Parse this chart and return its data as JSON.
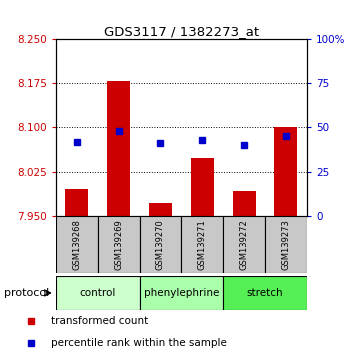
{
  "title": "GDS3117 / 1382273_at",
  "samples": [
    "GSM139268",
    "GSM139269",
    "GSM139270",
    "GSM139271",
    "GSM139272",
    "GSM139273"
  ],
  "red_values": [
    7.995,
    8.178,
    7.972,
    8.048,
    7.993,
    8.1
  ],
  "blue_values": [
    42,
    48,
    41,
    43,
    40,
    45
  ],
  "y_min": 7.95,
  "y_max": 8.25,
  "y_ticks": [
    7.95,
    8.025,
    8.1,
    8.175,
    8.25
  ],
  "right_y_ticks": [
    0,
    25,
    50,
    75,
    100
  ],
  "protocols": [
    {
      "label": "control",
      "samples": [
        0,
        1
      ],
      "color": "#ccffcc"
    },
    {
      "label": "phenylephrine",
      "samples": [
        2,
        3
      ],
      "color": "#aaffaa"
    },
    {
      "label": "stretch",
      "samples": [
        4,
        5
      ],
      "color": "#55ee55"
    }
  ],
  "bar_width": 0.55,
  "red_color": "#cc0000",
  "blue_color": "#0000cc",
  "bg_color": "#ffffff",
  "plot_bg": "#ffffff",
  "left_label_color": "#cc0000",
  "right_label_color": "#0000cc",
  "sample_box_color": "#c8c8c8",
  "grid_ticks": [
    8.025,
    8.1,
    8.175
  ]
}
